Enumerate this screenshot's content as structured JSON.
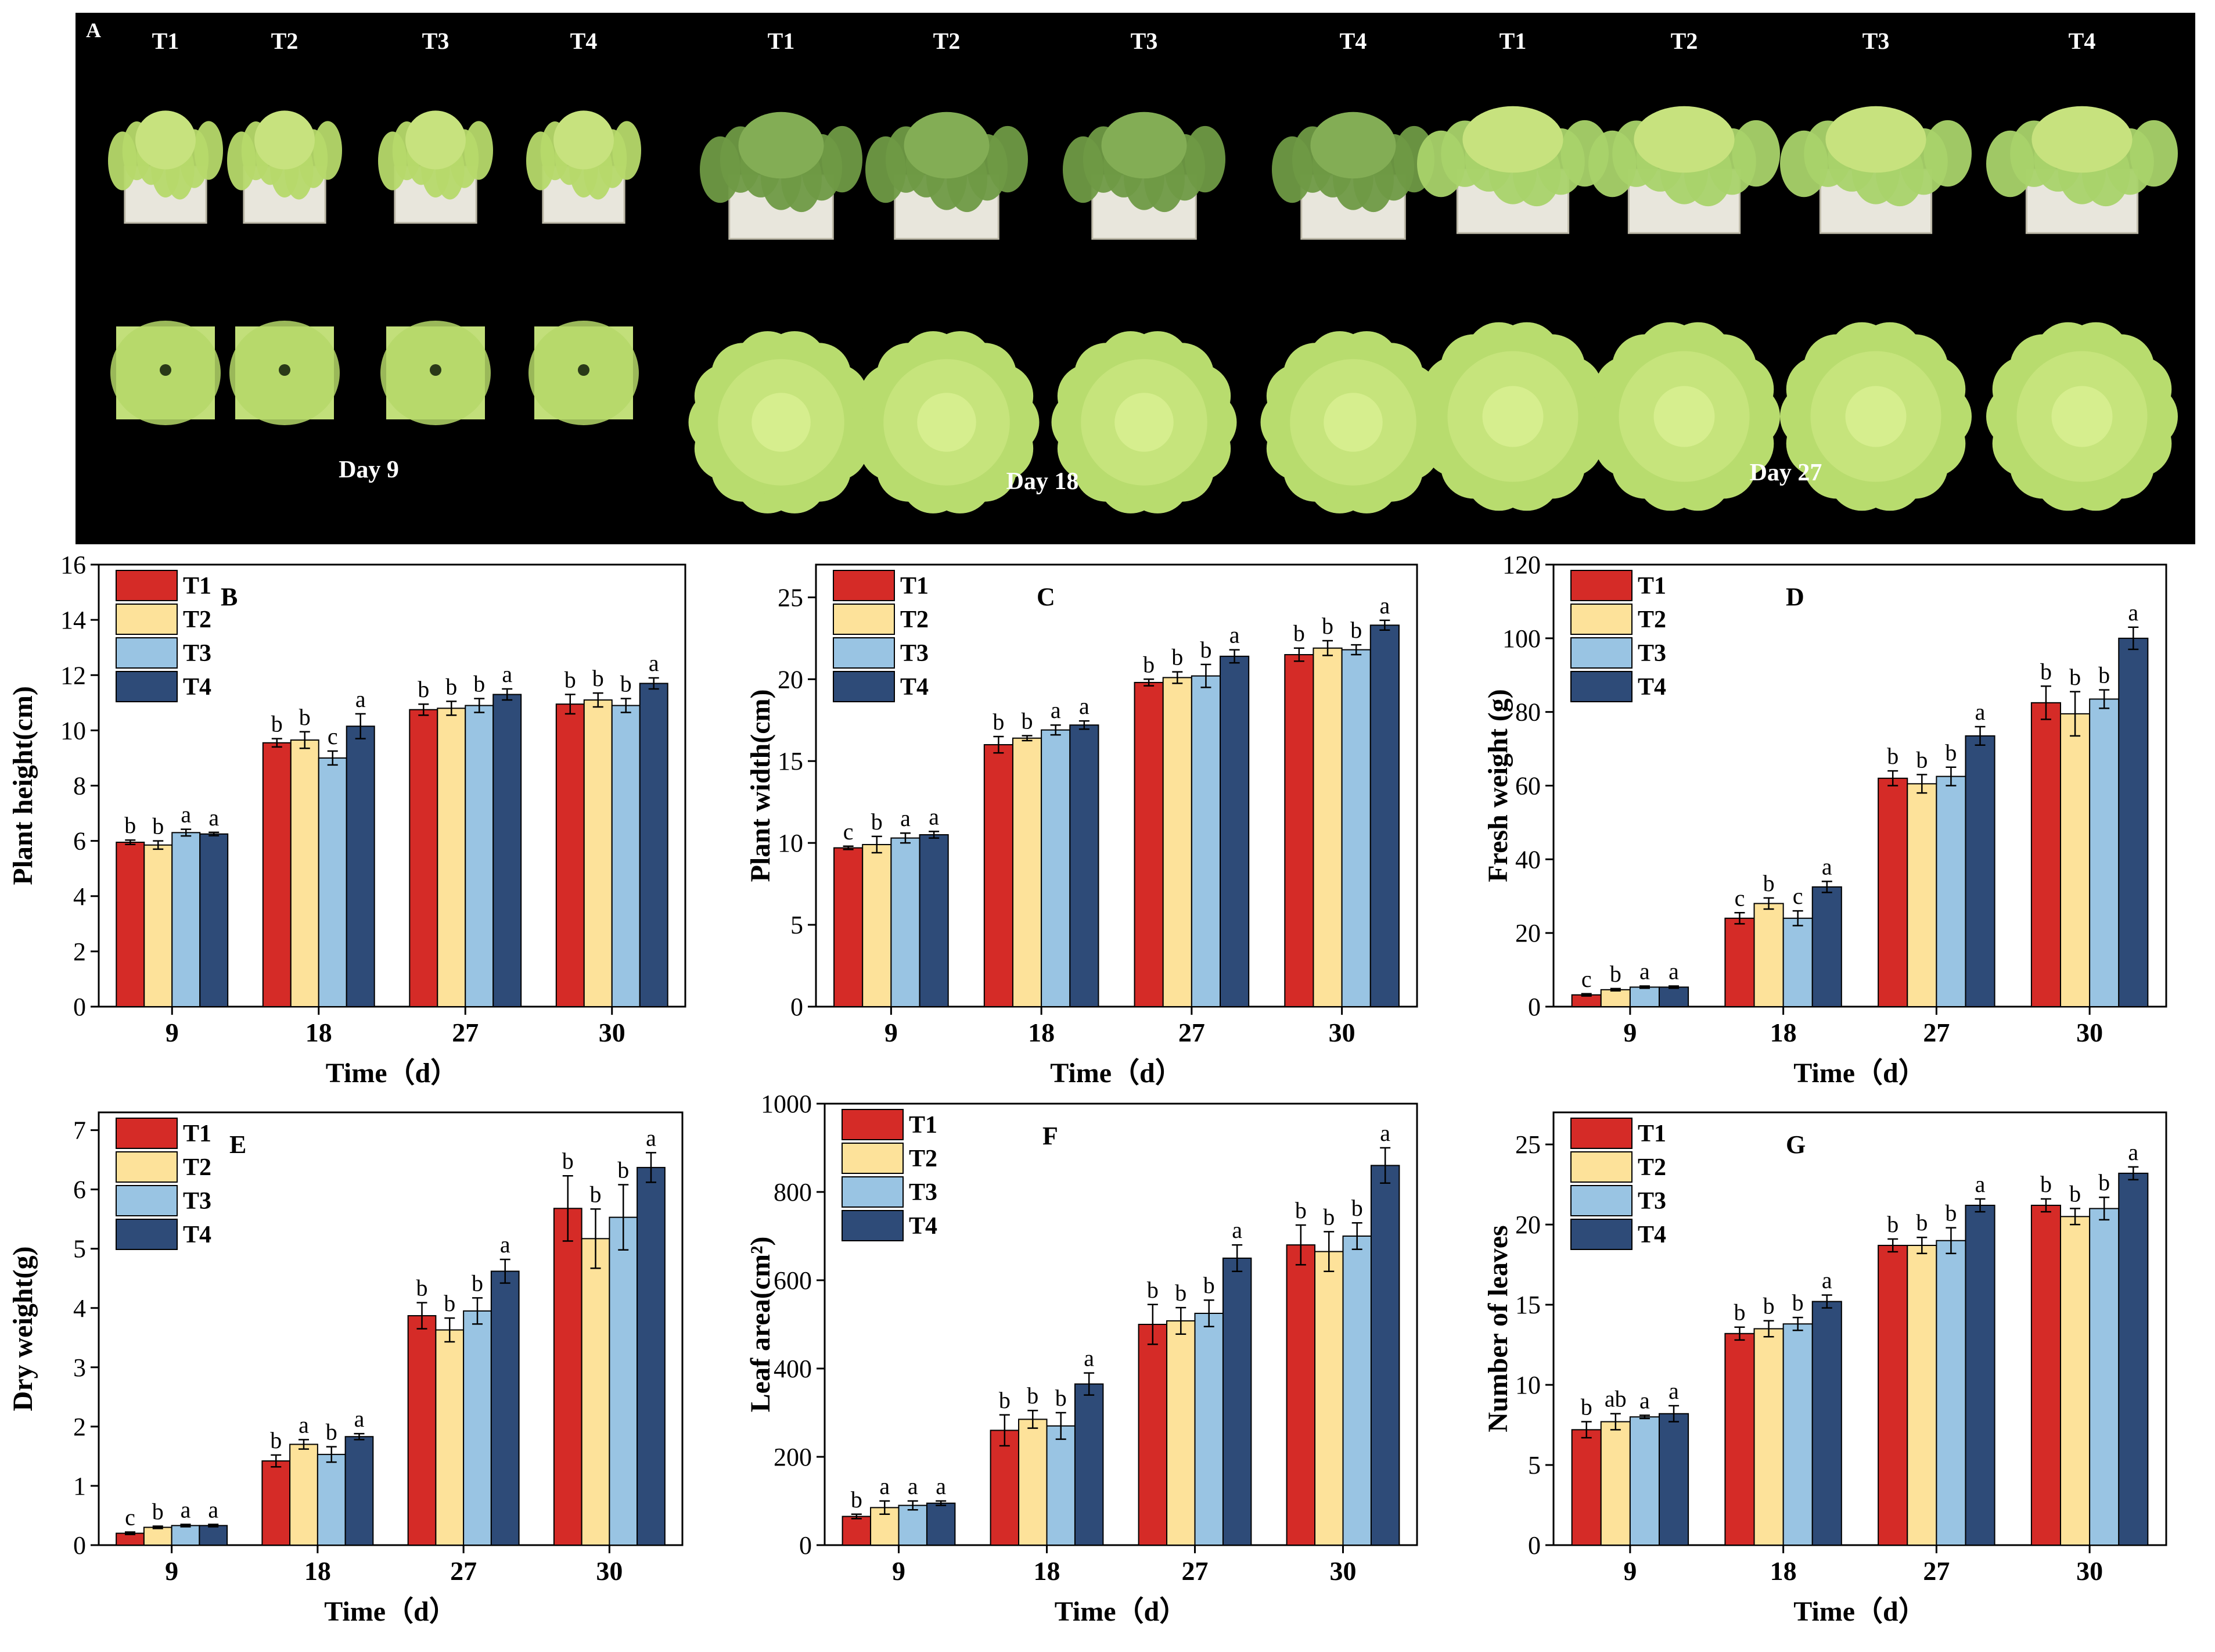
{
  "panel_a": {
    "letter": "A",
    "groups": [
      {
        "day_label": "Day 9",
        "treatments": [
          "T1",
          "T2",
          "T3",
          "T4"
        ]
      },
      {
        "day_label": "Day 18",
        "treatments": [
          "T1",
          "T2",
          "T3",
          "T4"
        ]
      },
      {
        "day_label": "Day 27",
        "treatments": [
          "T1",
          "T2",
          "T3",
          "T4"
        ]
      }
    ]
  },
  "colors": {
    "T1": "#d52b27",
    "T2": "#fde29a",
    "T3": "#99c4e3",
    "T4": "#2e4b78"
  },
  "chart_data": [
    {
      "panel": "B",
      "type": "bar",
      "xlabel": "Time（d）",
      "ylabel": "Plant height(cm)",
      "categories": [
        "9",
        "18",
        "27",
        "30"
      ],
      "ylim": [
        0,
        16
      ],
      "ticks": [
        0,
        2,
        4,
        6,
        8,
        10,
        12,
        14,
        16
      ],
      "series": [
        {
          "name": "T1",
          "values": [
            5.95,
            9.55,
            10.75,
            10.95
          ],
          "errors": [
            0.08,
            0.15,
            0.2,
            0.35
          ],
          "letters": [
            "b",
            "b",
            "b",
            "b"
          ]
        },
        {
          "name": "T2",
          "values": [
            5.85,
            9.65,
            10.8,
            11.1
          ],
          "errors": [
            0.15,
            0.3,
            0.25,
            0.25
          ],
          "letters": [
            "b",
            "b",
            "b",
            "b"
          ]
        },
        {
          "name": "T3",
          "values": [
            6.3,
            9.0,
            10.9,
            10.9
          ],
          "errors": [
            0.12,
            0.25,
            0.25,
            0.25
          ],
          "letters": [
            "a",
            "c",
            "b",
            "b"
          ]
        },
        {
          "name": "T4",
          "values": [
            6.25,
            10.15,
            11.3,
            11.7
          ],
          "errors": [
            0.06,
            0.45,
            0.2,
            0.2
          ],
          "letters": [
            "a",
            "a",
            "a",
            "a"
          ]
        }
      ]
    },
    {
      "panel": "C",
      "type": "bar",
      "xlabel": "Time（d）",
      "ylabel": "Plant width(cm)",
      "categories": [
        "9",
        "18",
        "27",
        "30"
      ],
      "ylim": [
        0,
        27
      ],
      "ticks": [
        0,
        5,
        10,
        15,
        20,
        25
      ],
      "series": [
        {
          "name": "T1",
          "values": [
            9.7,
            16.0,
            19.8,
            21.5
          ],
          "errors": [
            0.1,
            0.5,
            0.2,
            0.4
          ],
          "letters": [
            "c",
            "b",
            "b",
            "b"
          ]
        },
        {
          "name": "T2",
          "values": [
            9.9,
            16.4,
            20.1,
            21.9
          ],
          "errors": [
            0.5,
            0.15,
            0.35,
            0.45
          ],
          "letters": [
            "b",
            "b",
            "b",
            "b"
          ]
        },
        {
          "name": "T3",
          "values": [
            10.3,
            16.9,
            20.2,
            21.8
          ],
          "errors": [
            0.3,
            0.3,
            0.7,
            0.3
          ],
          "letters": [
            "a",
            "a",
            "b",
            "b"
          ]
        },
        {
          "name": "T4",
          "values": [
            10.5,
            17.2,
            21.4,
            23.3
          ],
          "errors": [
            0.2,
            0.25,
            0.4,
            0.3
          ],
          "letters": [
            "a",
            "a",
            "a",
            "a"
          ]
        }
      ]
    },
    {
      "panel": "D",
      "type": "bar",
      "xlabel": "Time（d）",
      "ylabel": "Fresh weight (g)",
      "categories": [
        "9",
        "18",
        "27",
        "30"
      ],
      "ylim": [
        0,
        120
      ],
      "ticks": [
        0,
        20,
        40,
        60,
        80,
        100,
        120
      ],
      "series": [
        {
          "name": "T1",
          "values": [
            3.2,
            24.0,
            62.0,
            82.5
          ],
          "errors": [
            0.3,
            1.5,
            2.0,
            4.5
          ],
          "letters": [
            "c",
            "c",
            "b",
            "b"
          ]
        },
        {
          "name": "T2",
          "values": [
            4.6,
            28.0,
            60.5,
            79.5
          ],
          "errors": [
            0.3,
            1.5,
            2.5,
            6.0
          ],
          "letters": [
            "b",
            "b",
            "b",
            "b"
          ]
        },
        {
          "name": "T3",
          "values": [
            5.3,
            24.0,
            62.5,
            83.5
          ],
          "errors": [
            0.3,
            2.0,
            2.5,
            2.5
          ],
          "letters": [
            "a",
            "c",
            "b",
            "b"
          ]
        },
        {
          "name": "T4",
          "values": [
            5.3,
            32.5,
            73.5,
            100.0
          ],
          "errors": [
            0.3,
            1.5,
            2.5,
            3.0
          ],
          "letters": [
            "a",
            "a",
            "a",
            "a"
          ]
        }
      ]
    },
    {
      "panel": "E",
      "type": "bar",
      "xlabel": "Time（d）",
      "ylabel": "Dry weight(g)",
      "categories": [
        "9",
        "18",
        "27",
        "30"
      ],
      "ylim": [
        0,
        7.3
      ],
      "ticks": [
        0,
        1,
        2,
        3,
        4,
        5,
        6,
        7
      ],
      "series": [
        {
          "name": "T1",
          "values": [
            0.2,
            1.42,
            3.87,
            5.68
          ],
          "errors": [
            0.02,
            0.1,
            0.22,
            0.55
          ],
          "letters": [
            "c",
            "b",
            "b",
            "b"
          ]
        },
        {
          "name": "T2",
          "values": [
            0.3,
            1.7,
            3.63,
            5.17
          ],
          "errors": [
            0.02,
            0.08,
            0.2,
            0.5
          ],
          "letters": [
            "b",
            "a",
            "b",
            "b"
          ]
        },
        {
          "name": "T3",
          "values": [
            0.33,
            1.53,
            3.95,
            5.53
          ],
          "errors": [
            0.02,
            0.13,
            0.22,
            0.55
          ],
          "letters": [
            "a",
            "b",
            "b",
            "b"
          ]
        },
        {
          "name": "T4",
          "values": [
            0.33,
            1.83,
            4.62,
            6.37
          ],
          "errors": [
            0.02,
            0.05,
            0.2,
            0.25
          ],
          "letters": [
            "a",
            "a",
            "a",
            "a"
          ]
        }
      ]
    },
    {
      "panel": "F",
      "type": "bar",
      "xlabel": "Time（d）",
      "ylabel": "Leaf area(cm²)",
      "categories": [
        "9",
        "18",
        "27",
        "30"
      ],
      "ylim": [
        0,
        1000
      ],
      "ticks": [
        0,
        200,
        400,
        600,
        800,
        1000
      ],
      "series": [
        {
          "name": "T1",
          "values": [
            65,
            260,
            500,
            680
          ],
          "errors": [
            5,
            35,
            45,
            45
          ],
          "letters": [
            "b",
            "b",
            "b",
            "b"
          ]
        },
        {
          "name": "T2",
          "values": [
            85,
            285,
            508,
            665
          ],
          "errors": [
            15,
            20,
            30,
            45
          ],
          "letters": [
            "a",
            "b",
            "b",
            "b"
          ]
        },
        {
          "name": "T3",
          "values": [
            90,
            270,
            525,
            700
          ],
          "errors": [
            10,
            30,
            30,
            30
          ],
          "letters": [
            "a",
            "b",
            "b",
            "b"
          ]
        },
        {
          "name": "T4",
          "values": [
            95,
            365,
            650,
            860
          ],
          "errors": [
            5,
            25,
            30,
            40
          ],
          "letters": [
            "a",
            "a",
            "a",
            "a"
          ]
        }
      ]
    },
    {
      "panel": "G",
      "type": "bar",
      "xlabel": "Time（d）",
      "ylabel": "Number of leaves",
      "categories": [
        "9",
        "18",
        "27",
        "30"
      ],
      "ylim": [
        0,
        27
      ],
      "ticks": [
        0,
        5,
        10,
        15,
        20,
        25
      ],
      "series": [
        {
          "name": "T1",
          "values": [
            7.2,
            13.2,
            18.7,
            21.2
          ],
          "errors": [
            0.5,
            0.4,
            0.4,
            0.4
          ],
          "letters": [
            "b",
            "b",
            "b",
            "b"
          ]
        },
        {
          "name": "T2",
          "values": [
            7.7,
            13.5,
            18.7,
            20.5
          ],
          "errors": [
            0.5,
            0.5,
            0.5,
            0.5
          ],
          "letters": [
            "ab",
            "b",
            "b",
            "b"
          ]
        },
        {
          "name": "T3",
          "values": [
            8.0,
            13.8,
            19.0,
            21.0
          ],
          "errors": [
            0.1,
            0.4,
            0.8,
            0.7
          ],
          "letters": [
            "a",
            "b",
            "b",
            "b"
          ]
        },
        {
          "name": "T4",
          "values": [
            8.2,
            15.2,
            21.2,
            23.2
          ],
          "errors": [
            0.5,
            0.4,
            0.4,
            0.4
          ],
          "letters": [
            "a",
            "a",
            "a",
            "a"
          ]
        }
      ]
    }
  ]
}
